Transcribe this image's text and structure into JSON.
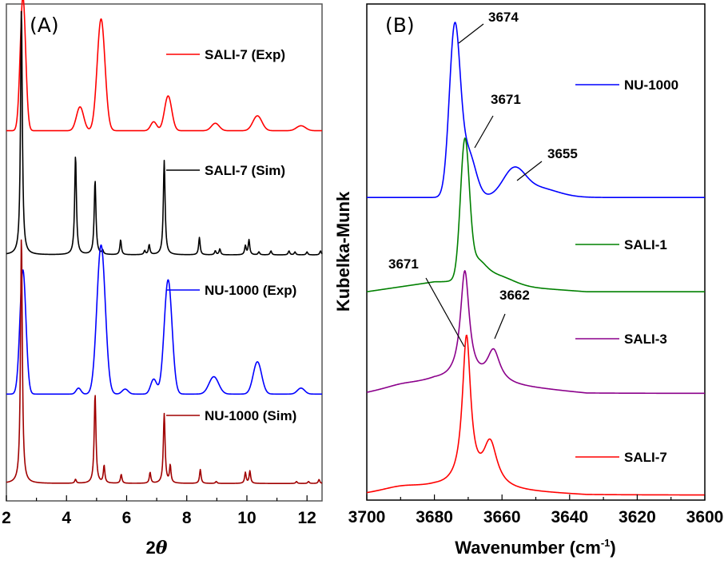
{
  "chart_data": [
    {
      "panel_label": "(A)",
      "type": "line",
      "xlabel": "2",
      "xlabel_symbol": "θ",
      "ylabel": "",
      "xlim": [
        2,
        12.5
      ],
      "xticks": [
        2,
        4,
        6,
        8,
        10,
        12
      ],
      "xtick_labels": [
        "2",
        "4",
        "6",
        "8",
        "10",
        "12"
      ],
      "ylim": [
        0,
        1
      ],
      "y_axis": "stacked, offset, no ticks",
      "grid": false,
      "legend_placement": "inline, right of each trace",
      "series": [
        {
          "name": "SALI-7 (Exp)",
          "color": "#ff0000",
          "offset": 0.745,
          "shape": "gauss",
          "peaks": [
            [
              2.55,
              0.27,
              0.09
            ],
            [
              4.45,
              0.048,
              0.12
            ],
            [
              5.15,
              0.225,
              0.13
            ],
            [
              6.9,
              0.018,
              0.1
            ],
            [
              7.38,
              0.07,
              0.12
            ],
            [
              8.95,
              0.015,
              0.13
            ],
            [
              10.35,
              0.03,
              0.15
            ],
            [
              11.8,
              0.01,
              0.15
            ]
          ]
        },
        {
          "name": "SALI-7 (Sim)",
          "color": "#000000",
          "offset": 0.495,
          "shape": "lorentz",
          "peaks": [
            [
              2.5,
              0.5,
              0.035
            ],
            [
              4.3,
              0.2,
              0.035
            ],
            [
              4.95,
              0.15,
              0.035
            ],
            [
              5.2,
              0.008,
              0.03
            ],
            [
              5.8,
              0.03,
              0.03
            ],
            [
              6.6,
              0.008,
              0.03
            ],
            [
              6.75,
              0.02,
              0.03
            ],
            [
              7.25,
              0.19,
              0.035
            ],
            [
              8.42,
              0.035,
              0.03
            ],
            [
              8.95,
              0.008,
              0.03
            ],
            [
              9.1,
              0.012,
              0.03
            ],
            [
              9.95,
              0.018,
              0.03
            ],
            [
              10.07,
              0.03,
              0.03
            ],
            [
              10.4,
              0.006,
              0.03
            ],
            [
              10.8,
              0.008,
              0.03
            ],
            [
              11.4,
              0.008,
              0.03
            ],
            [
              11.6,
              0.006,
              0.03
            ],
            [
              12.0,
              0.006,
              0.03
            ],
            [
              12.45,
              0.008,
              0.03
            ]
          ]
        },
        {
          "name": "NU-1000 (Exp)",
          "color": "#0000ff",
          "offset": 0.215,
          "shape": "gauss",
          "peaks": [
            [
              2.55,
              0.25,
              0.1
            ],
            [
              4.4,
              0.012,
              0.08
            ],
            [
              5.15,
              0.3,
              0.14
            ],
            [
              5.95,
              0.01,
              0.1
            ],
            [
              6.9,
              0.03,
              0.1
            ],
            [
              7.38,
              0.23,
              0.13
            ],
            [
              8.9,
              0.035,
              0.16
            ],
            [
              10.35,
              0.065,
              0.14
            ],
            [
              11.8,
              0.012,
              0.12
            ]
          ]
        },
        {
          "name": "NU-1000 (Sim)",
          "color": "#a00000",
          "offset": 0.035,
          "shape": "lorentz",
          "peaks": [
            [
              2.5,
              0.5,
              0.035
            ],
            [
              4.3,
              0.008,
              0.03
            ],
            [
              4.95,
              0.18,
              0.035
            ],
            [
              5.25,
              0.035,
              0.03
            ],
            [
              5.82,
              0.018,
              0.03
            ],
            [
              6.78,
              0.022,
              0.03
            ],
            [
              7.25,
              0.14,
              0.035
            ],
            [
              7.45,
              0.035,
              0.03
            ],
            [
              8.45,
              0.028,
              0.03
            ],
            [
              8.98,
              0.004,
              0.03
            ],
            [
              9.95,
              0.022,
              0.03
            ],
            [
              10.1,
              0.025,
              0.03
            ],
            [
              11.65,
              0.004,
              0.03
            ],
            [
              12.05,
              0.004,
              0.03
            ],
            [
              12.4,
              0.008,
              0.03
            ]
          ]
        }
      ]
    },
    {
      "panel_label": "(B)",
      "type": "line",
      "xlabel": "Wavenumber (cm",
      "xlabel_sup": "-1",
      "xlabel_close": ")",
      "ylabel": "Kubelka-Munk",
      "xlim": [
        3700,
        3600
      ],
      "xticks": [
        3700,
        3680,
        3660,
        3640,
        3620,
        3600
      ],
      "xtick_labels": [
        "3700",
        "3680",
        "3660",
        "3640",
        "3620",
        "3600"
      ],
      "ylim": [
        0,
        1
      ],
      "y_axis": "stacked, offset, no ticks",
      "grid": false,
      "legend_placement": "inline, right side",
      "series": [
        {
          "name": "NU-1000",
          "color": "#0000ff",
          "offset": 0.61,
          "tail": 0.0,
          "shape": "gauss",
          "peaks": [
            [
              3674,
              0.335,
              1.6
            ],
            [
              3670,
              0.09,
              2.2
            ],
            [
              3656.5,
              0.05,
              3.2
            ],
            [
              3650,
              0.02,
              6
            ]
          ]
        },
        {
          "name": "SALI-1",
          "color": "#008000",
          "offset": 0.42,
          "tail": 0.04,
          "shape": "gauss",
          "peaks": [
            [
              3671,
              0.265,
              1.3
            ],
            [
              3668,
              0.04,
              2.8
            ],
            [
              3662,
              0.02,
              5
            ]
          ]
        },
        {
          "name": "SALI-3",
          "color": "#8b008b",
          "offset": 0.215,
          "tail": 0.05,
          "shape": "lorentz",
          "peaks": [
            [
              3671,
              0.22,
              1.6
            ],
            [
              3662.5,
              0.065,
              2.3
            ],
            [
              3690,
              0.005,
              6
            ]
          ]
        },
        {
          "name": "SALI-7",
          "color": "#ff0000",
          "offset": 0.01,
          "tail": 0.025,
          "shape": "lorentz",
          "peaks": [
            [
              3670.5,
              0.3,
              1.5
            ],
            [
              3663.5,
              0.09,
              2.5
            ],
            [
              3690,
              0.01,
              8
            ]
          ]
        }
      ],
      "annotations": [
        {
          "text": "3674",
          "target_x": 3674,
          "series": "NU-1000"
        },
        {
          "text": "3671",
          "target_x": 3671,
          "series": "NU-1000"
        },
        {
          "text": "3655",
          "target_x": 3655,
          "series": "NU-1000"
        },
        {
          "text": "3662",
          "target_x": 3662.5,
          "series": "SALI-3"
        },
        {
          "text": "3671",
          "target_x": 3671,
          "series": "SALI-7"
        }
      ]
    }
  ]
}
